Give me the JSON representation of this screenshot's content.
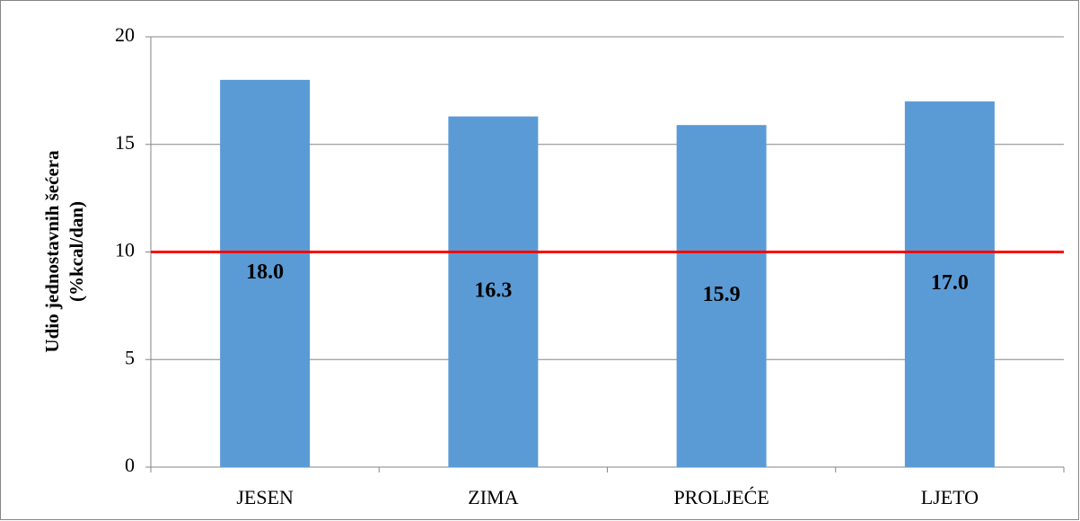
{
  "chart_data": {
    "type": "bar",
    "ylabel": [
      "Udio jednostavnih šećera",
      "(%kcal/dan)"
    ],
    "categories": [
      "JESEN",
      "ZIMA",
      "PROLJEĆE",
      "LJETO"
    ],
    "values": [
      18.0,
      16.3,
      15.9,
      17.0
    ],
    "value_labels": [
      "18.0",
      "16.3",
      "15.9",
      "17.0"
    ],
    "color": "#5b9bd5",
    "ylim": [
      0,
      20
    ],
    "yticks": [
      0,
      5,
      10,
      15,
      20
    ],
    "grid": true,
    "reference_line": {
      "value": 10,
      "color": "#ff0000"
    }
  }
}
